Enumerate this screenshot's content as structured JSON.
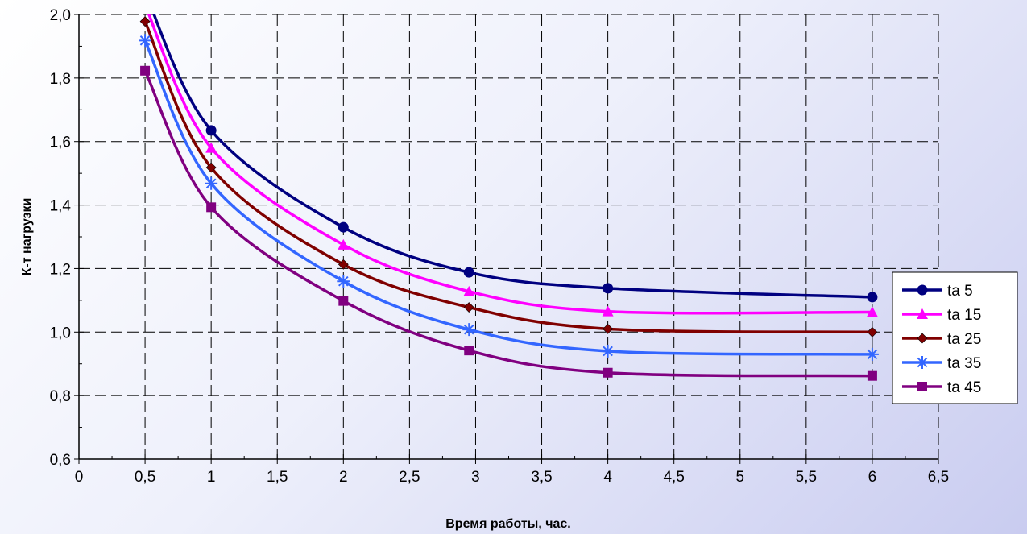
{
  "chart_data": {
    "type": "line",
    "title": "",
    "xlabel": "Время работы, час.",
    "ylabel": "К-т нагрузки",
    "xlim": [
      0,
      6.5
    ],
    "ylim": [
      0.6,
      2.0
    ],
    "x_ticks": [
      "0",
      "0,5",
      "1",
      "1,5",
      "2",
      "2,5",
      "3",
      "3,5",
      "4",
      "4,5",
      "5",
      "5,5",
      "6",
      "6,5"
    ],
    "y_ticks": [
      "0,6",
      "0,8",
      "1,0",
      "1,2",
      "1,4",
      "1,6",
      "1,8",
      "2,0"
    ],
    "x_tick_values": [
      0,
      0.5,
      1,
      1.5,
      2,
      2.5,
      3,
      3.5,
      4,
      4.5,
      5,
      5.5,
      6,
      6.5
    ],
    "y_tick_values": [
      0.6,
      0.8,
      1.0,
      1.2,
      1.4,
      1.6,
      1.8,
      2.0
    ],
    "grid": true,
    "legend_position": "right",
    "series": [
      {
        "name": "ta 5",
        "color": "#000080",
        "marker": "circle",
        "x": [
          0.5,
          1,
          2,
          2.95,
          4,
          6
        ],
        "y": [
          2.07,
          1.635,
          1.33,
          1.188,
          1.138,
          1.11
        ]
      },
      {
        "name": "ta 15",
        "color": "#ff00ff",
        "marker": "triangle",
        "x": [
          0.5,
          1,
          2,
          2.95,
          4,
          6
        ],
        "y": [
          2.03,
          1.58,
          1.275,
          1.128,
          1.065,
          1.063
        ]
      },
      {
        "name": "ta 25",
        "color": "#800000",
        "marker": "diamond",
        "x": [
          0.5,
          1,
          2,
          2.95,
          4,
          6
        ],
        "y": [
          1.978,
          1.518,
          1.213,
          1.078,
          1.01,
          1.0
        ]
      },
      {
        "name": "ta 35",
        "color": "#3366ff",
        "marker": "star",
        "x": [
          0.5,
          1,
          2,
          2.95,
          4,
          6
        ],
        "y": [
          1.918,
          1.468,
          1.16,
          1.008,
          0.94,
          0.93
        ]
      },
      {
        "name": "ta 45",
        "color": "#800080",
        "marker": "square",
        "x": [
          0.5,
          1,
          2,
          2.95,
          4,
          6
        ],
        "y": [
          1.823,
          1.393,
          1.098,
          0.942,
          0.872,
          0.862
        ]
      }
    ]
  }
}
